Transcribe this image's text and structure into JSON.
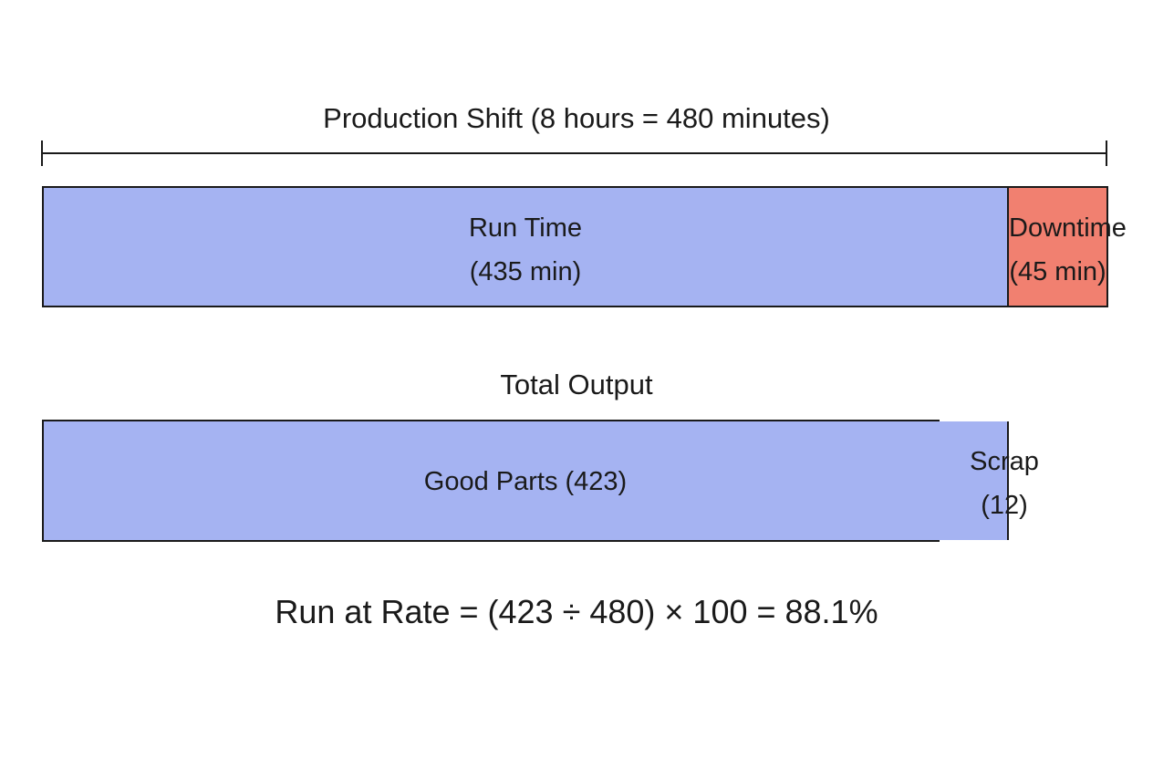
{
  "shift": {
    "title": "Production Shift (8 hours = 480 minutes)",
    "total_minutes": 480,
    "segments": [
      {
        "label": "Run Time",
        "value_text": "(435 min)",
        "minutes": 435,
        "color": "#a5b3f2"
      },
      {
        "label": "Downtime",
        "value_text": "(45 min)",
        "minutes": 45,
        "color": "#f18070"
      }
    ]
  },
  "output": {
    "title": "Total Output",
    "segments": [
      {
        "label": "Good Parts (423)",
        "count": 423,
        "color": "#a5b3f2"
      },
      {
        "label": "Scrap",
        "value_text": "(12)",
        "count": 12,
        "color": "#f18070"
      }
    ]
  },
  "formula": "Run at Rate = (423 ÷ 480) × 100 = 88.1%"
}
